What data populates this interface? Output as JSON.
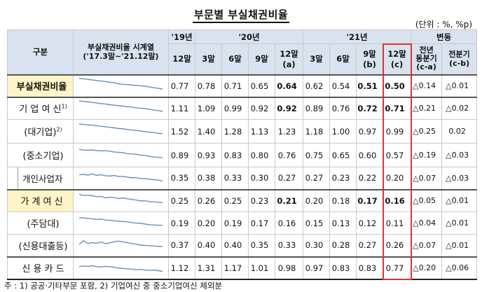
{
  "title": "부문별 부실채권비율",
  "unit": "(단위 : %, %p)",
  "header": {
    "col_gubun": "구분",
    "col_series_line1": "부실채권비율 시계열",
    "col_series_line2": "('17.3말~'21.12말)",
    "year_19": "'19년",
    "year_20": "'20년",
    "year_21": "'21년",
    "change": "변동",
    "sub": [
      "12말",
      "3말",
      "6말",
      "9말",
      "12말",
      "3말",
      "6말",
      "9말",
      "12말"
    ],
    "sub_marks": [
      "",
      "",
      "",
      "",
      "(a)",
      "",
      "",
      "(b)",
      "(c)"
    ],
    "change_yoy_1": "전년",
    "change_yoy_2": "동분기",
    "change_yoy_3": "(c-a)",
    "change_qoq_1": "전분기",
    "change_qoq_2": "(c-b)"
  },
  "rows": [
    {
      "label": "부실채권비율",
      "values": [
        "0.77",
        "0.78",
        "0.71",
        "0.65",
        "0.64",
        "0.62",
        "0.54",
        "0.51",
        "0.50"
      ],
      "yoy": "△0.14",
      "qoq": "△0.01",
      "spark": [
        1.0,
        0.97,
        0.94,
        0.9,
        0.86,
        0.83,
        0.8,
        0.75,
        0.72,
        0.65,
        0.62,
        0.6,
        0.57,
        0.55,
        0.52,
        0.5,
        0.45,
        0.4,
        0.36,
        0.3
      ]
    },
    {
      "label": "기 업 여 신",
      "label_sup": "1)",
      "values": [
        "1.11",
        "1.09",
        "0.99",
        "0.92",
        "0.92",
        "0.89",
        "0.76",
        "0.72",
        "0.71"
      ],
      "yoy": "△0.21",
      "qoq": "△0.02",
      "spark": [
        1.0,
        0.96,
        0.93,
        0.9,
        0.86,
        0.82,
        0.79,
        0.75,
        0.72,
        0.68,
        0.66,
        0.62,
        0.6,
        0.55,
        0.52,
        0.5,
        0.45,
        0.4,
        0.37,
        0.32
      ]
    },
    {
      "label": "(대기업)",
      "label_sup": "2)",
      "values": [
        "1.52",
        "1.40",
        "1.28",
        "1.13",
        "1.23",
        "1.18",
        "1.00",
        "0.97",
        "0.99"
      ],
      "yoy": "△0.25",
      "qoq": "0.02",
      "spark": [
        1.0,
        0.97,
        0.94,
        0.92,
        0.88,
        0.85,
        0.82,
        0.78,
        0.75,
        0.7,
        0.68,
        0.64,
        0.6,
        0.58,
        0.55,
        0.5,
        0.47,
        0.44,
        0.4,
        0.36
      ]
    },
    {
      "label": "(중소기업)",
      "values": [
        "0.89",
        "0.93",
        "0.83",
        "0.80",
        "0.76",
        "0.75",
        "0.65",
        "0.60",
        "0.57"
      ],
      "yoy": "△0.19",
      "qoq": "△0.03",
      "spark": [
        0.9,
        0.85,
        0.84,
        0.86,
        0.82,
        0.8,
        0.81,
        0.78,
        0.72,
        0.7,
        0.68,
        0.62,
        0.6,
        0.58,
        0.52,
        0.5,
        0.44,
        0.4,
        0.38,
        0.35
      ]
    },
    {
      "label": "개인사업자",
      "values": [
        "0.35",
        "0.38",
        "0.33",
        "0.30",
        "0.27",
        "0.27",
        "0.23",
        "0.22",
        "0.20"
      ],
      "yoy": "△0.07",
      "qoq": "△0.03",
      "spark": [
        0.7,
        0.72,
        0.68,
        0.75,
        0.66,
        0.7,
        0.64,
        0.62,
        0.66,
        0.58,
        0.6,
        0.55,
        0.5,
        0.52,
        0.46,
        0.44,
        0.42,
        0.38,
        0.36,
        0.3
      ]
    },
    {
      "label": "가 계 여 신",
      "values": [
        "0.25",
        "0.26",
        "0.25",
        "0.23",
        "0.21",
        "0.20",
        "0.18",
        "0.17",
        "0.16"
      ],
      "yoy": "△0.05",
      "qoq": "△0.01",
      "spark": [
        0.95,
        0.85,
        0.88,
        0.84,
        0.78,
        0.8,
        0.7,
        0.74,
        0.72,
        0.66,
        0.7,
        0.64,
        0.6,
        0.56,
        0.5,
        0.52,
        0.46,
        0.44,
        0.42,
        0.38
      ]
    },
    {
      "label": "(주담대)",
      "values": [
        "0.19",
        "0.20",
        "0.19",
        "0.17",
        "0.16",
        "0.15",
        "0.13",
        "0.12",
        "0.11"
      ],
      "yoy": "△0.04",
      "qoq": "△0.01",
      "spark": [
        0.85,
        0.86,
        0.82,
        0.8,
        0.76,
        0.78,
        0.72,
        0.7,
        0.66,
        0.64,
        0.62,
        0.6,
        0.55,
        0.52,
        0.5,
        0.46,
        0.42,
        0.4,
        0.38,
        0.36
      ]
    },
    {
      "label": "(신용대출등)",
      "values": [
        "0.37",
        "0.40",
        "0.40",
        "0.35",
        "0.33",
        "0.30",
        "0.28",
        "0.27",
        "0.26"
      ],
      "yoy": "△0.07",
      "qoq": "△0.01",
      "spark": [
        0.55,
        0.78,
        0.6,
        0.66,
        0.62,
        0.7,
        0.6,
        0.64,
        0.72,
        0.76,
        0.7,
        0.66,
        0.6,
        0.56,
        0.5,
        0.48,
        0.46,
        0.44,
        0.42,
        0.4
      ]
    },
    {
      "label": "신 용 카 드",
      "values": [
        "1.12",
        "1.31",
        "1.17",
        "1.01",
        "0.98",
        "0.97",
        "0.83",
        "0.83",
        "0.77"
      ],
      "yoy": "△0.20",
      "qoq": "△0.06",
      "spark": [
        0.6,
        0.64,
        0.62,
        0.66,
        0.6,
        0.58,
        0.62,
        0.6,
        0.56,
        0.5,
        0.48,
        0.46,
        0.44,
        0.4,
        0.42,
        0.38,
        0.36,
        0.38,
        0.34,
        0.3
      ]
    }
  ],
  "bold_cells": {
    "0": [
      4,
      7,
      8
    ],
    "1": [
      4,
      7,
      8
    ],
    "5": [
      4,
      7,
      8
    ]
  },
  "footnote": "주 : 1) 공공·기타부문 포함, 2) 기업여신 중 중소기업여신 제외분",
  "colors": {
    "header_bg": "#d8e3ef",
    "highlight_row": "#fff4c6",
    "red_box": "#e03131",
    "spark_line": "#6b8fb5"
  }
}
